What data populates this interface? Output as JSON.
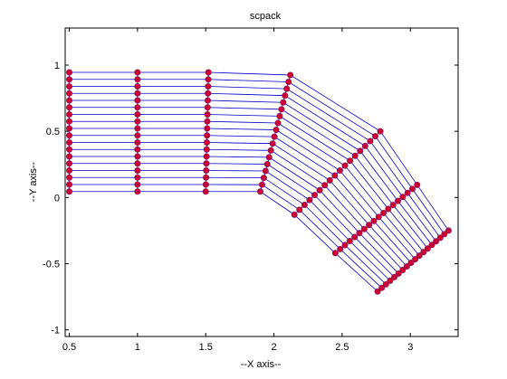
{
  "chart_data": {
    "type": "line",
    "title": "scpack",
    "xlabel": "--X axis--",
    "ylabel": "--Y axis--",
    "xlim": [
      0.47,
      3.35
    ],
    "ylim": [
      -1.05,
      1.28
    ],
    "xticks": [
      0.5,
      1,
      1.5,
      2,
      2.5,
      3
    ],
    "xtick_labels": [
      "0.5",
      "1",
      "1.5",
      "2",
      "2.5",
      "3"
    ],
    "yticks": [
      -1,
      -0.5,
      0,
      0.5,
      1
    ],
    "ytick_labels": [
      "-1",
      "-0.5",
      "0",
      "0.5",
      "1"
    ],
    "grid": false,
    "line_color": "#0000cc",
    "marker_color": "#cc0033",
    "lines_per_mesh": 18,
    "corner_points": [
      {
        "top": [
          0.5,
          0.945
        ],
        "bottom": [
          0.5,
          0.045
        ]
      },
      {
        "top": [
          1.0,
          0.945
        ],
        "bottom": [
          1.0,
          0.045
        ]
      },
      {
        "top": [
          1.52,
          0.945
        ],
        "bottom": [
          1.5,
          0.045
        ]
      },
      {
        "top": [
          2.12,
          0.925
        ],
        "bottom": [
          1.9,
          0.045
        ]
      },
      {
        "top": [
          2.78,
          0.5
        ],
        "bottom": [
          2.15,
          -0.13
        ]
      },
      {
        "top": [
          3.05,
          0.095
        ],
        "bottom": [
          2.45,
          -0.42
        ]
      },
      {
        "top": [
          3.28,
          -0.25
        ],
        "bottom": [
          2.76,
          -0.71
        ]
      }
    ]
  }
}
